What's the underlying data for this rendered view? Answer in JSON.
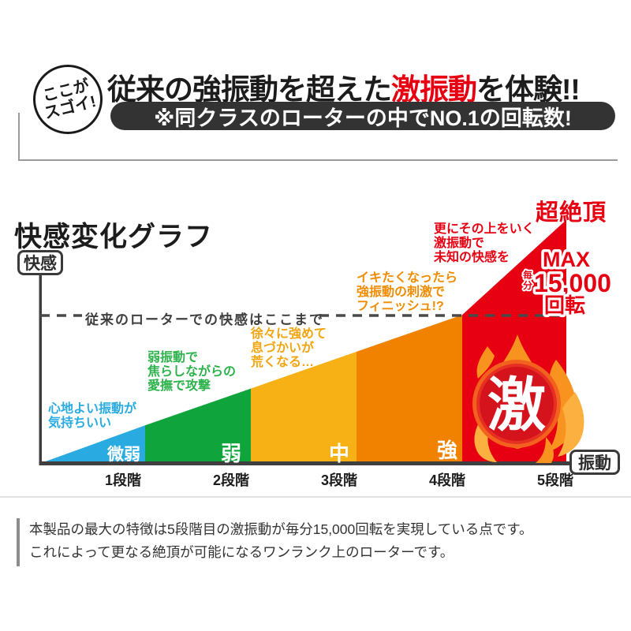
{
  "header": {
    "badge": {
      "line1": "ここが",
      "line2": "スゴイ!"
    },
    "headline": {
      "pre": "従来の強振動を超えた",
      "highlight": "激振動",
      "post": "を体験!!"
    },
    "subheadline": "※同クラスのローターの中でNO.1の回転数!"
  },
  "chart": {
    "title": "快感変化グラフ",
    "y_axis_label": "快感",
    "x_axis_label": "振動",
    "peak_label": "超絶頂",
    "emblem_char": "激",
    "max_badge": {
      "line1": "MAX",
      "prefix": "毎分",
      "value": "15,000",
      "unit": "回転"
    }
  },
  "chart_data": {
    "type": "area",
    "title": "快感変化グラフ",
    "xlabel": "振動",
    "ylabel": "快感",
    "categories": [
      "1段階",
      "2段階",
      "3段階",
      "4段階",
      "5段階"
    ],
    "band_labels": [
      "微弱",
      "弱",
      "中",
      "強",
      "激"
    ],
    "band_colors": [
      "#29abe2",
      "#0fa53c",
      "#f7b115",
      "#f08200",
      "#e60012"
    ],
    "values_relative": [
      1,
      2,
      3,
      4,
      6.58
    ],
    "threshold": {
      "value": 4,
      "label": "従来のローターでの快感はここまで"
    },
    "peak": {
      "label": "超絶頂",
      "badge": "MAX 毎分15,000回転"
    },
    "annotations": [
      {
        "color": "#29abe2",
        "lines": [
          "心地よい振動が",
          "気持ちいい"
        ]
      },
      {
        "color": "#2eb24c",
        "lines": [
          "弱振動で",
          "焦らしながらの",
          "愛撫で攻撃"
        ]
      },
      {
        "color": "#f2a50f",
        "lines": [
          "徐々に強めて",
          "息づかいが",
          "荒くなる…"
        ]
      },
      {
        "color": "#ef8c00",
        "lines": [
          "イキたくなったら",
          "強振動の刺激で",
          "フィニッシュ!?"
        ]
      },
      {
        "color": "#e60012",
        "lines": [
          "更にその上をいく",
          "激振動で",
          "未知の快感を"
        ]
      }
    ],
    "legend_position": "none",
    "grid": false
  },
  "footer": {
    "lines": [
      "本製品の最大の特徴は5段階目の激振動が毎分15,000回転を実現している点です。",
      "これによって更なる絶頂が可能になるワンランク上のローターです。"
    ]
  },
  "colors": {
    "accent_red": "#e60012",
    "pill_bg": "#333333",
    "axis": "#3f3f3f",
    "dashed_line": "#4a4a4a",
    "divider": "#e3e3e3",
    "footer_bar": "#8c8c8c"
  }
}
